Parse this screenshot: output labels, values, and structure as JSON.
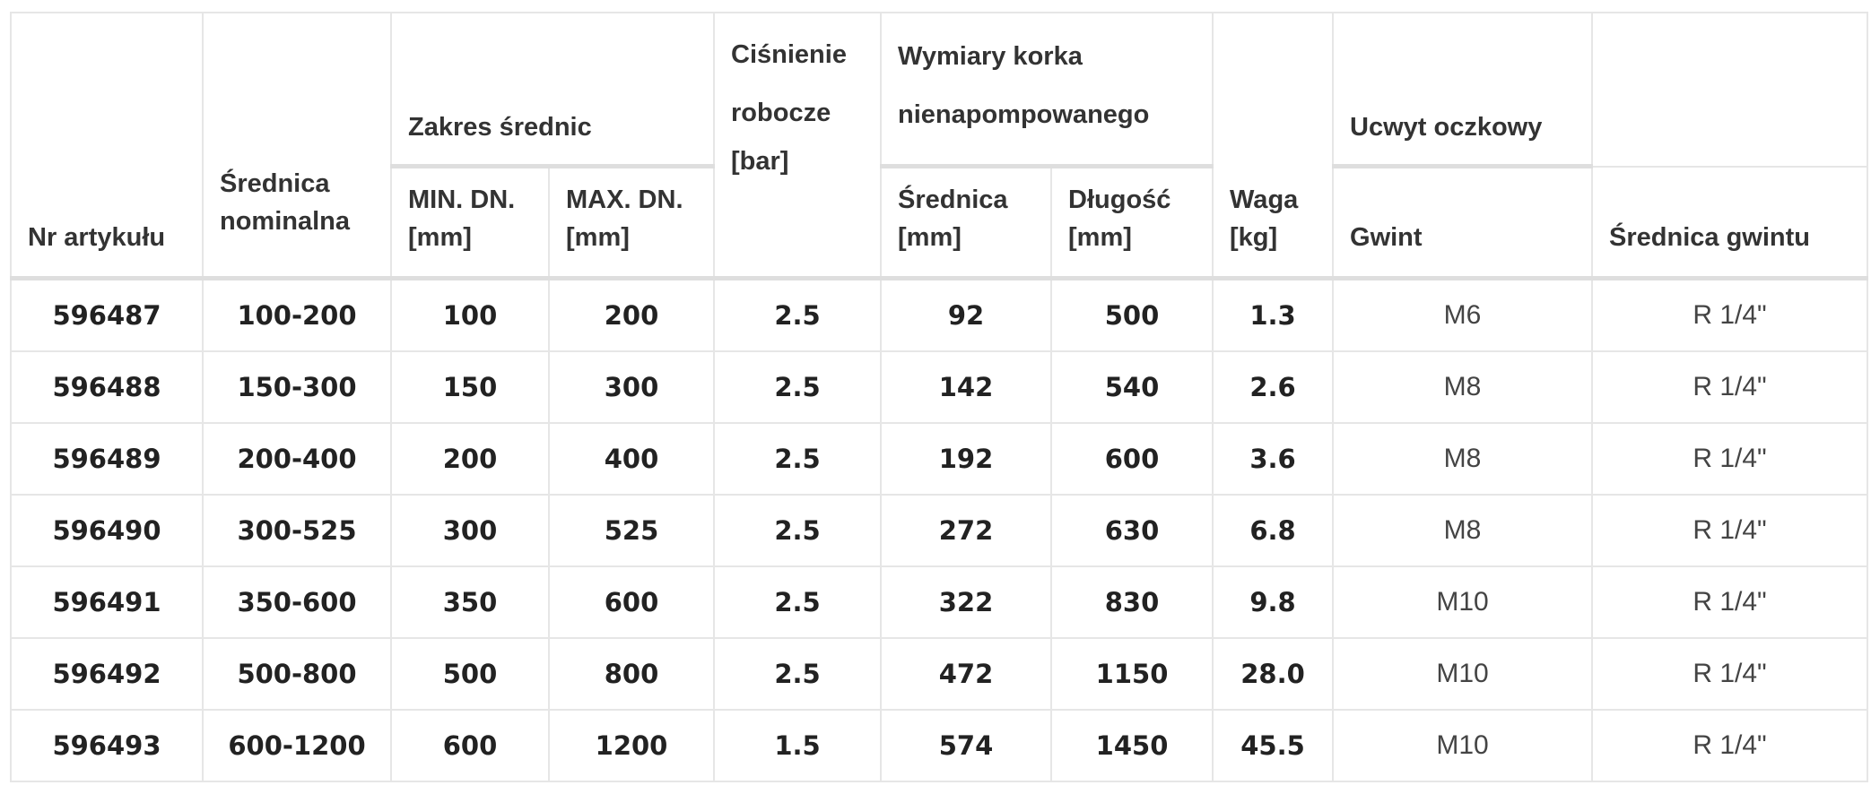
{
  "headers": {
    "nr_artykulu": "Nr artykułu",
    "srednica_nominalna_1": "Średnica",
    "srednica_nominalna_2": "nominalna",
    "zakres_srednic": "Zakres średnic",
    "min_dn_1": "MIN. DN.",
    "min_dn_2": "[mm]",
    "max_dn_1": "MAX. DN.",
    "max_dn_2": "[mm]",
    "cisnienie_1": "Ciśnienie",
    "cisnienie_2": "robocze",
    "cisnienie_3": "[bar]",
    "wymiary_1": "Wymiary korka",
    "wymiary_2": "nienapompowanego",
    "srednica_mm_1": "Średnica",
    "srednica_mm_2": "[mm]",
    "dlugosc_1": "Długość",
    "dlugosc_2": "[mm]",
    "waga_1": "Waga",
    "waga_2": "[kg]",
    "uchwyt": "Ucwyt oczkowy",
    "gwint": "Gwint",
    "srednica_gwintu": "Średnica gwintu"
  },
  "rows": [
    {
      "nr": "596487",
      "nominal": "100-200",
      "min": "100",
      "max": "200",
      "pressure": "2.5",
      "diameter": "92",
      "length": "500",
      "weight": "1.3",
      "thread": "M6",
      "thread_diameter": "R 1/4\""
    },
    {
      "nr": "596488",
      "nominal": "150-300",
      "min": "150",
      "max": "300",
      "pressure": "2.5",
      "diameter": "142",
      "length": "540",
      "weight": "2.6",
      "thread": "M8",
      "thread_diameter": "R 1/4\""
    },
    {
      "nr": "596489",
      "nominal": "200-400",
      "min": "200",
      "max": "400",
      "pressure": "2.5",
      "diameter": "192",
      "length": "600",
      "weight": "3.6",
      "thread": "M8",
      "thread_diameter": "R 1/4\""
    },
    {
      "nr": "596490",
      "nominal": "300-525",
      "min": "300",
      "max": "525",
      "pressure": "2.5",
      "diameter": "272",
      "length": "630",
      "weight": "6.8",
      "thread": "M8",
      "thread_diameter": "R 1/4\""
    },
    {
      "nr": "596491",
      "nominal": "350-600",
      "min": "350",
      "max": "600",
      "pressure": "2.5",
      "diameter": "322",
      "length": "830",
      "weight": "9.8",
      "thread": "M10",
      "thread_diameter": "R 1/4\""
    },
    {
      "nr": "596492",
      "nominal": "500-800",
      "min": "500",
      "max": "800",
      "pressure": "2.5",
      "diameter": "472",
      "length": "1150",
      "weight": "28.0",
      "thread": "M10",
      "thread_diameter": "R 1/4\""
    },
    {
      "nr": "596493",
      "nominal": "600-1200",
      "min": "600",
      "max": "1200",
      "pressure": "1.5",
      "diameter": "574",
      "length": "1450",
      "weight": "45.5",
      "thread": "M10",
      "thread_diameter": "R 1/4\""
    }
  ]
}
